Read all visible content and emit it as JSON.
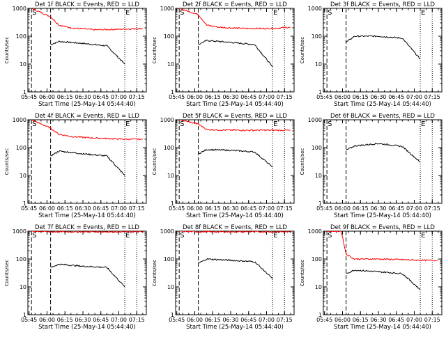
{
  "figure": {
    "xlabel": "Start Time (25-May-14 05:44:40)",
    "ylabel": "Counts/sec",
    "colors": {
      "events": "#000000",
      "lld": "#ff0000",
      "axes": "#000000"
    }
  },
  "chart_data": [
    {
      "type": "line",
      "title": "Det 1f BLACK = Events, RED = LLD",
      "xlabel": "Start Time (25-May-14 05:44:40)",
      "ylabel": "Counts/sec",
      "yscale": "log",
      "ylim": [
        1,
        1000
      ],
      "x_ticks": [
        "05:45",
        "06:00",
        "06:15",
        "06:30",
        "06:45",
        "07:00",
        "07:15"
      ],
      "y_ticks": [
        "1",
        "10",
        "100",
        "1000"
      ],
      "markers": [
        {
          "t": "05:47",
          "style": "dashed",
          "label": "S"
        },
        {
          "t": "06:03",
          "style": "dashed"
        },
        {
          "t": "07:05",
          "style": "dotted",
          "label": "E"
        },
        {
          "t": "07:15",
          "style": "dotted"
        }
      ],
      "series": [
        {
          "name": "Events",
          "color": "black",
          "x": [
            "06:03",
            "06:10",
            "06:30",
            "06:50",
            "07:05"
          ],
          "y": [
            50,
            65,
            55,
            45,
            10
          ]
        },
        {
          "name": "LLD",
          "color": "red",
          "x": [
            "05:47",
            "06:03",
            "06:10",
            "06:20",
            "06:40",
            "07:05",
            "07:20"
          ],
          "y": [
            1000,
            500,
            250,
            200,
            170,
            180,
            190
          ]
        }
      ]
    },
    {
      "type": "line",
      "title": "Det 2f BLACK = Events, RED = LLD",
      "xlabel": "Start Time (25-May-14 05:44:40)",
      "ylabel": "Counts/sec",
      "yscale": "log",
      "ylim": [
        1,
        1000
      ],
      "x_ticks": [
        "05:45",
        "06:00",
        "06:15",
        "06:30",
        "06:45",
        "07:00",
        "07:15"
      ],
      "y_ticks": [
        "1",
        "10",
        "100",
        "1000"
      ],
      "markers": [
        {
          "t": "05:47",
          "style": "dashed",
          "label": "S"
        },
        {
          "t": "06:03",
          "style": "dashed"
        },
        {
          "t": "07:05",
          "style": "dotted",
          "label": "E"
        },
        {
          "t": "07:15",
          "style": "dotted"
        }
      ],
      "series": [
        {
          "name": "Events",
          "color": "black",
          "x": [
            "06:03",
            "06:10",
            "06:30",
            "06:50",
            "07:05"
          ],
          "y": [
            50,
            70,
            60,
            50,
            8
          ]
        },
        {
          "name": "LLD",
          "color": "red",
          "x": [
            "05:47",
            "06:03",
            "06:10",
            "06:20",
            "06:40",
            "07:05",
            "07:20"
          ],
          "y": [
            1000,
            600,
            250,
            210,
            190,
            190,
            210
          ]
        }
      ]
    },
    {
      "type": "line",
      "title": "Det 3f BLACK = Events, RED = LLD",
      "xlabel": "Start Time (25-May-14 05:44:40)",
      "ylabel": "Counts/sec",
      "yscale": "log",
      "ylim": [
        1,
        1000
      ],
      "x_ticks": [
        "05:45",
        "06:00",
        "06:15",
        "06:30",
        "06:45",
        "07:00",
        "07:15"
      ],
      "y_ticks": [
        "1",
        "10",
        "100",
        "1000"
      ],
      "markers": [
        {
          "t": "05:47",
          "style": "dashed",
          "label": "S"
        },
        {
          "t": "06:03",
          "style": "dashed"
        },
        {
          "t": "07:05",
          "style": "dotted",
          "label": "E"
        },
        {
          "t": "07:15",
          "style": "dotted"
        }
      ],
      "series": [
        {
          "name": "Events",
          "color": "black",
          "x": [
            "06:03",
            "06:10",
            "06:30",
            "06:50",
            "07:05"
          ],
          "y": [
            60,
            100,
            100,
            85,
            15
          ]
        }
      ]
    },
    {
      "type": "line",
      "title": "Det 4f BLACK = Events, RED = LLD",
      "xlabel": "Start Time (25-May-14 05:44:40)",
      "ylabel": "Counts/sec",
      "yscale": "log",
      "ylim": [
        1,
        1000
      ],
      "x_ticks": [
        "05:45",
        "06:00",
        "06:15",
        "06:30",
        "06:45",
        "07:00",
        "07:15"
      ],
      "y_ticks": [
        "1",
        "10",
        "100",
        "1000"
      ],
      "markers": [
        {
          "t": "05:47",
          "style": "dashed",
          "label": "S"
        },
        {
          "t": "06:03",
          "style": "dashed"
        },
        {
          "t": "07:05",
          "style": "dotted",
          "label": "E"
        },
        {
          "t": "07:15",
          "style": "dotted"
        }
      ],
      "series": [
        {
          "name": "Events",
          "color": "black",
          "x": [
            "06:03",
            "06:10",
            "06:30",
            "06:50",
            "07:05"
          ],
          "y": [
            50,
            75,
            60,
            50,
            10
          ]
        },
        {
          "name": "LLD",
          "color": "red",
          "x": [
            "05:47",
            "06:03",
            "06:10",
            "06:20",
            "06:40",
            "07:05",
            "07:20"
          ],
          "y": [
            1000,
            500,
            300,
            250,
            220,
            200,
            200
          ]
        }
      ]
    },
    {
      "type": "line",
      "title": "Det 5f BLACK = Events, RED = LLD",
      "xlabel": "Start Time (25-May-14 05:44:40)",
      "ylabel": "Counts/sec",
      "yscale": "log",
      "ylim": [
        1,
        1000
      ],
      "x_ticks": [
        "05:45",
        "06:00",
        "06:15",
        "06:30",
        "06:45",
        "07:00",
        "07:15"
      ],
      "y_ticks": [
        "1",
        "10",
        "100",
        "1000"
      ],
      "markers": [
        {
          "t": "05:47",
          "style": "dashed",
          "label": "S"
        },
        {
          "t": "06:03",
          "style": "dashed"
        },
        {
          "t": "07:05",
          "style": "dotted",
          "label": "E"
        },
        {
          "t": "07:15",
          "style": "dotted"
        }
      ],
      "series": [
        {
          "name": "Events",
          "color": "black",
          "x": [
            "06:03",
            "06:10",
            "06:30",
            "06:50",
            "07:05"
          ],
          "y": [
            60,
            85,
            80,
            70,
            20
          ]
        },
        {
          "name": "LLD",
          "color": "red",
          "x": [
            "05:47",
            "06:03",
            "06:10",
            "06:20",
            "06:40",
            "07:05",
            "07:20"
          ],
          "y": [
            1000,
            700,
            450,
            430,
            420,
            420,
            420
          ]
        }
      ]
    },
    {
      "type": "line",
      "title": "Det 6f BLACK = Events, RED = LLD",
      "xlabel": "Start Time (25-May-14 05:44:40)",
      "ylabel": "Counts/sec",
      "yscale": "log",
      "ylim": [
        1,
        1000
      ],
      "x_ticks": [
        "05:45",
        "06:00",
        "06:15",
        "06:30",
        "06:45",
        "07:00",
        "07:15"
      ],
      "y_ticks": [
        "1",
        "10",
        "100",
        "1000"
      ],
      "markers": [
        {
          "t": "05:47",
          "style": "dashed",
          "label": "S"
        },
        {
          "t": "06:03",
          "style": "dashed"
        },
        {
          "t": "07:05",
          "style": "dotted",
          "label": "E"
        },
        {
          "t": "07:15",
          "style": "dotted"
        }
      ],
      "series": [
        {
          "name": "Events",
          "color": "black",
          "x": [
            "06:03",
            "06:10",
            "06:30",
            "06:50",
            "07:05"
          ],
          "y": [
            80,
            115,
            140,
            110,
            30
          ]
        }
      ]
    },
    {
      "type": "line",
      "title": "Det 7f BLACK = Events, RED = LLD",
      "xlabel": "Start Time (25-May-14 05:44:40)",
      "ylabel": "Counts/sec",
      "yscale": "log",
      "ylim": [
        1,
        1000
      ],
      "x_ticks": [
        "05:45",
        "06:00",
        "06:15",
        "06:30",
        "06:45",
        "07:00",
        "07:15"
      ],
      "y_ticks": [
        "1",
        "10",
        "100",
        "1000"
      ],
      "markers": [
        {
          "t": "05:47",
          "style": "dashed",
          "label": "S"
        },
        {
          "t": "06:03",
          "style": "dashed"
        },
        {
          "t": "07:05",
          "style": "dotted",
          "label": "E"
        },
        {
          "t": "07:15",
          "style": "dotted"
        }
      ],
      "series": [
        {
          "name": "Events",
          "color": "black",
          "x": [
            "06:03",
            "06:10",
            "06:30",
            "06:50",
            "07:05"
          ],
          "y": [
            50,
            65,
            55,
            50,
            10
          ]
        },
        {
          "name": "LLD",
          "color": "red",
          "x": [
            "05:47",
            "06:03",
            "06:10",
            "06:20",
            "06:40",
            "07:05",
            "07:20"
          ],
          "y": [
            1000,
            950,
            950,
            950,
            950,
            950,
            950
          ]
        }
      ]
    },
    {
      "type": "line",
      "title": "Det 8f BLACK = Events, RED = LLD",
      "xlabel": "Start Time (25-May-14 05:44:40)",
      "ylabel": "Counts/sec",
      "yscale": "log",
      "ylim": [
        1,
        1000
      ],
      "x_ticks": [
        "05:45",
        "06:00",
        "06:15",
        "06:30",
        "06:45",
        "07:00",
        "07:15"
      ],
      "y_ticks": [
        "1",
        "10",
        "100",
        "1000"
      ],
      "markers": [
        {
          "t": "05:47",
          "style": "dashed",
          "label": "S"
        },
        {
          "t": "06:03",
          "style": "dashed"
        },
        {
          "t": "07:05",
          "style": "dotted",
          "label": "E"
        },
        {
          "t": "07:15",
          "style": "dotted"
        }
      ],
      "series": [
        {
          "name": "Events",
          "color": "black",
          "x": [
            "06:03",
            "06:10",
            "06:30",
            "06:50",
            "07:05"
          ],
          "y": [
            70,
            100,
            90,
            80,
            20
          ]
        },
        {
          "name": "LLD",
          "color": "red",
          "x": [
            "05:47",
            "06:03",
            "06:10",
            "06:20",
            "06:40",
            "07:05",
            "07:20"
          ],
          "y": [
            1000,
            950,
            950,
            950,
            950,
            950,
            950
          ]
        }
      ]
    },
    {
      "type": "line",
      "title": "Det 9f BLACK = Events, RED = LLD",
      "xlabel": "Start Time (25-May-14 05:44:40)",
      "ylabel": "Counts/sec",
      "yscale": "log",
      "ylim": [
        1,
        1000
      ],
      "x_ticks": [
        "05:45",
        "06:00",
        "06:15",
        "06:30",
        "06:45",
        "07:00",
        "07:15"
      ],
      "y_ticks": [
        "1",
        "10",
        "100",
        "1000"
      ],
      "markers": [
        {
          "t": "05:47",
          "style": "dashed",
          "label": "S"
        },
        {
          "t": "06:03",
          "style": "dashed"
        },
        {
          "t": "07:05",
          "style": "dotted",
          "label": "E"
        },
        {
          "t": "07:15",
          "style": "dotted"
        }
      ],
      "series": [
        {
          "name": "Events",
          "color": "black",
          "x": [
            "06:03",
            "06:10",
            "06:30",
            "06:50",
            "07:05"
          ],
          "y": [
            30,
            40,
            35,
            30,
            8
          ]
        },
        {
          "name": "LLD",
          "color": "red",
          "x": [
            "05:47",
            "05:59",
            "06:03",
            "06:10",
            "06:30",
            "06:50",
            "07:05",
            "07:20"
          ],
          "y": [
            1000,
            1000,
            150,
            100,
            100,
            95,
            90,
            90
          ]
        }
      ]
    }
  ]
}
